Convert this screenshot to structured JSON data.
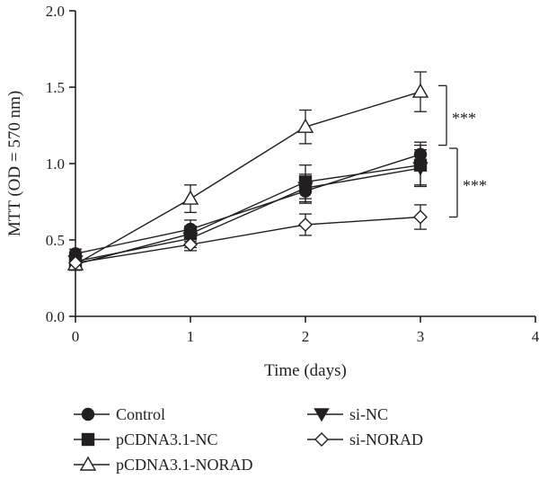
{
  "chart_data": {
    "type": "line",
    "title": "",
    "xlabel": "Time (days)",
    "ylabel": "MTT (OD = 570 nm)",
    "xlim": [
      0,
      4
    ],
    "ylim": [
      0,
      2.0
    ],
    "x_ticks": [
      "0",
      "1",
      "2",
      "3",
      "4"
    ],
    "y_ticks": [
      "0.0",
      "0.5",
      "1.0",
      "1.5",
      "2.0"
    ],
    "grid": false,
    "legend_position": "bottom",
    "x": [
      0,
      1,
      2,
      3
    ],
    "series": [
      {
        "name": "Control",
        "marker": "filled-circle",
        "values": [
          0.41,
          0.57,
          0.82,
          1.06
        ],
        "errors": [
          0.03,
          0.06,
          0.08,
          0.08
        ]
      },
      {
        "name": "pCDNA3.1-NC",
        "marker": "filled-square",
        "values": [
          0.34,
          0.54,
          0.88,
          0.99
        ],
        "errors": [
          0.03,
          0.05,
          0.11,
          0.13
        ]
      },
      {
        "name": "pCDNA3.1-NORAD",
        "marker": "open-triangle",
        "values": [
          0.34,
          0.77,
          1.24,
          1.47
        ],
        "errors": [
          0.03,
          0.09,
          0.11,
          0.13
        ]
      },
      {
        "name": "si-NC",
        "marker": "filled-triangle-down",
        "values": [
          0.36,
          0.51,
          0.84,
          0.97
        ],
        "errors": [
          0.03,
          0.06,
          0.09,
          0.12
        ]
      },
      {
        "name": "si-NORAD",
        "marker": "open-diamond",
        "values": [
          0.35,
          0.47,
          0.6,
          0.65
        ],
        "errors": [
          0.03,
          0.04,
          0.07,
          0.08
        ]
      }
    ],
    "significance": [
      {
        "label": "***",
        "from": 1.51,
        "to": 1.12
      },
      {
        "label": "***",
        "from": 1.1,
        "to": 0.65
      }
    ]
  }
}
